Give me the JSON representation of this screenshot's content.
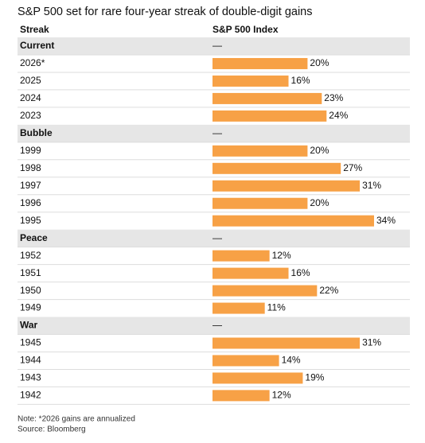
{
  "chart_data": {
    "type": "bar",
    "title": "S&P 500 set for rare four-year streak of double-digit gains",
    "column_headers": [
      "Streak",
      "S&P 500 Index"
    ],
    "color": "#f7a146",
    "groups": [
      {
        "name": "Current",
        "marker": "—",
        "categories": [
          "2026*",
          "2025",
          "2024",
          "2023"
        ],
        "values": [
          20,
          16,
          23,
          24
        ],
        "value_labels": [
          "20%",
          "16%",
          "23%",
          "24%"
        ]
      },
      {
        "name": "Bubble",
        "marker": "—",
        "categories": [
          "1999",
          "1998",
          "1997",
          "1996",
          "1995"
        ],
        "values": [
          20,
          27,
          31,
          20,
          34
        ],
        "value_labels": [
          "20%",
          "27%",
          "31%",
          "20%",
          "34%"
        ]
      },
      {
        "name": "Peace",
        "marker": "—",
        "categories": [
          "1952",
          "1951",
          "1950",
          "1949"
        ],
        "values": [
          12,
          16,
          22,
          11
        ],
        "value_labels": [
          "12%",
          "16%",
          "22%",
          "11%"
        ]
      },
      {
        "name": "War",
        "marker": "—",
        "categories": [
          "1945",
          "1944",
          "1943",
          "1942"
        ],
        "values": [
          31,
          14,
          19,
          12
        ],
        "value_labels": [
          "31%",
          "14%",
          "19%",
          "12%"
        ]
      }
    ],
    "notes": [
      "Note: *2026 gains are annualized",
      "Source: Bloomberg"
    ]
  }
}
